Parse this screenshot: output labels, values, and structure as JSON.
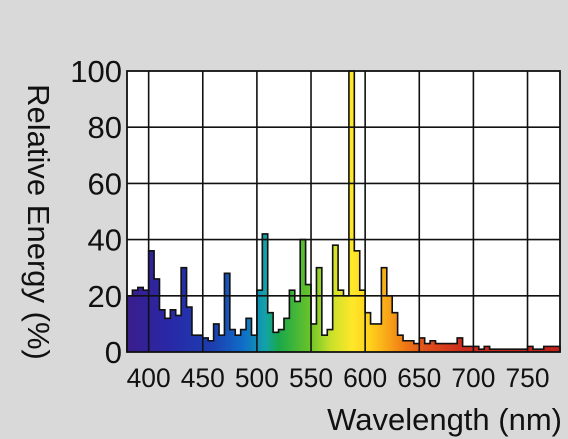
{
  "chart_data": {
    "type": "bar",
    "title": "",
    "xlabel": "Wavelength (nm)",
    "ylabel": "Relative Energy (%)",
    "xlim": [
      380,
      780
    ],
    "ylim": [
      0,
      100
    ],
    "grid": true,
    "x_ticks": [
      400,
      450,
      500,
      550,
      600,
      650,
      700,
      750
    ],
    "y_ticks": [
      0,
      20,
      40,
      60,
      80,
      100
    ],
    "bin_width_nm": 5,
    "series": [
      {
        "x": [
          380,
          385,
          390,
          395,
          400,
          405,
          410,
          415,
          420,
          425,
          430,
          435,
          440,
          445,
          450,
          455,
          460,
          465,
          470,
          475,
          480,
          485,
          490,
          495,
          500,
          505,
          510,
          515,
          520,
          525,
          530,
          535,
          540,
          545,
          550,
          555,
          560,
          565,
          570,
          575,
          580,
          585,
          590,
          595,
          600,
          605,
          610,
          615,
          620,
          625,
          630,
          635,
          640,
          645,
          650,
          655,
          660,
          665,
          670,
          675,
          680,
          685,
          690,
          695,
          700,
          705,
          710,
          715,
          720,
          725,
          730,
          735,
          740,
          745,
          750,
          755,
          760,
          765,
          770,
          775
        ],
        "values": [
          20,
          22,
          23,
          22,
          36,
          26,
          15,
          12,
          15,
          13,
          30,
          16,
          6,
          6,
          5,
          4,
          10,
          6,
          28,
          8,
          6,
          8,
          12,
          6,
          22,
          42,
          14,
          7,
          8,
          12,
          22,
          18,
          40,
          24,
          10,
          30,
          6,
          8,
          38,
          22,
          20,
          100,
          36,
          22,
          14,
          10,
          10,
          30,
          20,
          14,
          6,
          4,
          4,
          3,
          5,
          3,
          4,
          3,
          3,
          3,
          3,
          5,
          2,
          2,
          2,
          1,
          2,
          1,
          1,
          1,
          1,
          1,
          1,
          1,
          2,
          1,
          1,
          2,
          2,
          2
        ]
      }
    ]
  }
}
